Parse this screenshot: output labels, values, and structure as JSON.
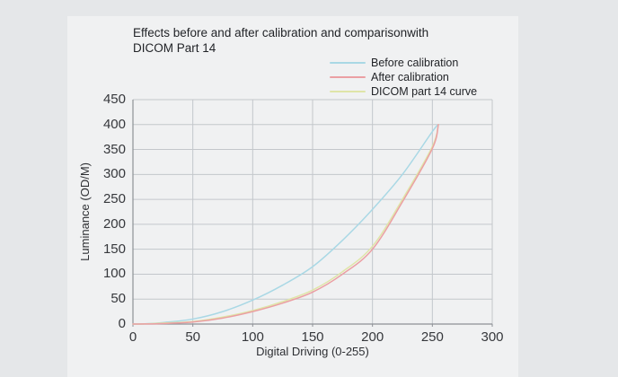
{
  "colors": {
    "page_bg": "#e5e7e9",
    "panel_bg": "#f0f1f2",
    "grid": "#c3c7cb",
    "axis": "#8d9196",
    "text": "#2d2f33"
  },
  "chart_data": {
    "type": "line",
    "title": "Effects before and after calibration and comparisonwith\nDICOM Part 14",
    "xlabel": "Digital Driving (0-255)",
    "ylabel": "Luminance (OD/M)",
    "xlim": [
      0,
      300
    ],
    "ylim": [
      0,
      450
    ],
    "xticks": [
      0,
      50,
      100,
      150,
      200,
      250,
      300
    ],
    "yticks": [
      0,
      50,
      100,
      150,
      200,
      250,
      300,
      350,
      400,
      450
    ],
    "grid": true,
    "legend_position": "top-right",
    "x": [
      0,
      10,
      25,
      50,
      75,
      100,
      125,
      150,
      175,
      200,
      225,
      250,
      255
    ],
    "series": [
      {
        "name": "Before calibration",
        "color": "#a9d8e5",
        "values": [
          0,
          0.5,
          3,
          10,
          25,
          48,
          78,
          115,
          168,
          230,
          300,
          386,
          400
        ]
      },
      {
        "name": "After calibration",
        "color": "#eb9fa3",
        "values": [
          0,
          0.2,
          1,
          4,
          12,
          25,
          42,
          64,
          100,
          150,
          245,
          352,
          400
        ]
      },
      {
        "name": "DICOM part 14 curve",
        "color": "#dfe5a8",
        "values": [
          0,
          0.3,
          2,
          5,
          14,
          27,
          45,
          68,
          105,
          156,
          250,
          356,
          400
        ]
      }
    ]
  }
}
